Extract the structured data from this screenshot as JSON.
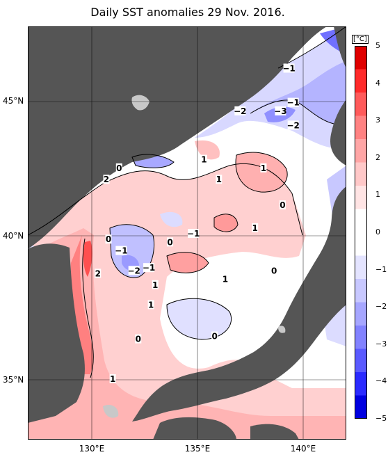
{
  "title": "Daily SST anomalies 29 Nov. 2016.",
  "lat_labels": [
    "45°N",
    "40°N",
    "35°N"
  ],
  "lon_labels": [
    "130°E",
    "135°E",
    "140°E"
  ],
  "colorbar": {
    "unit": "[°C]",
    "ticks": [
      "5",
      "4",
      "3",
      "2",
      "1",
      "0",
      "−1",
      "−2",
      "−3",
      "−4",
      "−5"
    ],
    "colors": [
      "#e00000",
      "#ff2a2a",
      "#ff5a5a",
      "#ff8282",
      "#ffa6a6",
      "#ffc8c8",
      "#ffe4e4",
      "#ffffff",
      "#ffffff",
      "#e4e4ff",
      "#c8c8ff",
      "#a6a6ff",
      "#8282ff",
      "#5a5aff",
      "#2a2aff",
      "#0000e0"
    ]
  },
  "contour_labels": [
    {
      "text": "−1",
      "lon": 139.3,
      "lat": 46.0
    },
    {
      "text": "−1",
      "lon": 139.5,
      "lat": 44.8
    },
    {
      "text": "−2",
      "lon": 137.0,
      "lat": 44.5
    },
    {
      "text": "−3",
      "lon": 138.9,
      "lat": 44.5
    },
    {
      "text": "−2",
      "lon": 139.5,
      "lat": 44.0
    },
    {
      "text": "0",
      "lon": 131.3,
      "lat": 42.5
    },
    {
      "text": "2",
      "lon": 130.7,
      "lat": 42.1
    },
    {
      "text": "1",
      "lon": 135.3,
      "lat": 42.8
    },
    {
      "text": "1",
      "lon": 136.0,
      "lat": 42.1
    },
    {
      "text": "1",
      "lon": 138.1,
      "lat": 42.5
    },
    {
      "text": "0",
      "lon": 139.0,
      "lat": 41.2
    },
    {
      "text": "1",
      "lon": 137.7,
      "lat": 40.4
    },
    {
      "text": "−1",
      "lon": 134.8,
      "lat": 40.2
    },
    {
      "text": "0",
      "lon": 133.7,
      "lat": 39.9
    },
    {
      "text": "0",
      "lon": 130.8,
      "lat": 40.0
    },
    {
      "text": "−1",
      "lon": 131.4,
      "lat": 39.6
    },
    {
      "text": "−2",
      "lon": 132.0,
      "lat": 38.9
    },
    {
      "text": "−1",
      "lon": 132.7,
      "lat": 39.0
    },
    {
      "text": "2",
      "lon": 130.3,
      "lat": 38.8
    },
    {
      "text": "1",
      "lon": 133.0,
      "lat": 38.4
    },
    {
      "text": "1",
      "lon": 132.8,
      "lat": 37.7
    },
    {
      "text": "1",
      "lon": 136.3,
      "lat": 38.6
    },
    {
      "text": "0",
      "lon": 138.6,
      "lat": 38.9
    },
    {
      "text": "0",
      "lon": 135.8,
      "lat": 36.6
    },
    {
      "text": "0",
      "lon": 132.2,
      "lat": 36.5
    },
    {
      "text": "1",
      "lon": 131.0,
      "lat": 35.1
    }
  ]
}
